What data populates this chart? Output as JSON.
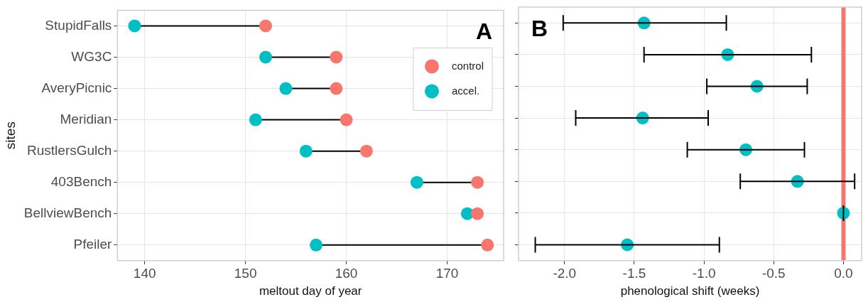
{
  "chart_data": [
    {
      "type": "scatter",
      "orientation": "horizontal",
      "ylabel": "sites",
      "xlabel": "meltout day of year",
      "annotations": [
        "A"
      ],
      "categories": [
        "StupidFalls",
        "WG3C",
        "AveryPicnic",
        "Meridian",
        "RustlersGulch",
        "403Bench",
        "BellviewBench",
        "Pfeiler"
      ],
      "series": [
        {
          "name": "control",
          "color": "#f8766d",
          "values": [
            152,
            159,
            159,
            160,
            162,
            173,
            173,
            174
          ]
        },
        {
          "name": "accel.",
          "color": "#00bfc4",
          "values": [
            139,
            152,
            154,
            151,
            156,
            167,
            172,
            157
          ]
        }
      ],
      "xlim": [
        137.3,
        175.6
      ],
      "xticks": [
        140,
        150,
        160,
        170
      ],
      "grid": true,
      "legend": "top right",
      "marker": "circle"
    },
    {
      "type": "scatter",
      "orientation": "horizontal",
      "xlabel": "phenological shift (weeks)",
      "annotations": [
        "B"
      ],
      "categories": [
        null,
        null,
        null,
        null,
        null,
        null,
        null,
        null
      ],
      "series": [
        {
          "color": "#00bfc4",
          "values": [
            -1.43,
            -0.83,
            -0.62,
            -1.44,
            -0.7,
            -0.33,
            0,
            -1.55
          ],
          "errors": [
            [
              -2.01,
              -0.84
            ],
            [
              -1.43,
              -0.23
            ],
            [
              -0.98,
              -0.26
            ],
            [
              -1.92,
              -0.97
            ],
            [
              -1.12,
              -0.28
            ],
            [
              -0.74,
              0.08
            ],
            [
              0,
              0
            ],
            [
              -2.21,
              -0.89
            ]
          ]
        }
      ],
      "xlim": [
        -2.33,
        0.13
      ],
      "xticks": [
        {
          "value": -2,
          "label": "-2.0"
        },
        {
          "value": -1.5,
          "label": "-1.5"
        },
        {
          "value": -1,
          "label": "-1.0"
        },
        {
          "value": -0.5,
          "label": "-0.5"
        },
        {
          "value": 0,
          "label": "0.0"
        }
      ],
      "ref_lines": [
        {
          "axis": "x",
          "value": 0,
          "color": "#f8766d"
        }
      ],
      "grid": true,
      "tick_labels": "x",
      "marker": "circle"
    }
  ]
}
